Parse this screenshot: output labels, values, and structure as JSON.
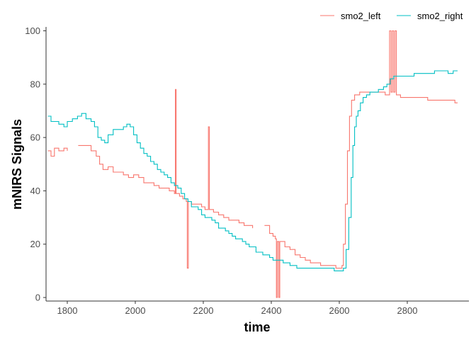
{
  "chart_data": {
    "type": "line",
    "xlabel": "time",
    "ylabel": "mNIRS Signals",
    "xlim": [
      1740,
      2950
    ],
    "ylim": [
      0,
      100
    ],
    "xticks": [
      1800,
      2000,
      2200,
      2400,
      2600,
      2800
    ],
    "yticks": [
      0,
      20,
      40,
      60,
      80,
      100
    ],
    "grid": false,
    "legend_position": "top-right",
    "series": [
      {
        "name": "smo2_left",
        "color": "#F8766D",
        "points": [
          [
            1743,
            55
          ],
          [
            1752,
            53
          ],
          [
            1762,
            56
          ],
          [
            1775,
            55
          ],
          [
            1790,
            56
          ],
          [
            1800,
            55
          ],
          [
            null,
            null
          ],
          [
            1832,
            57
          ],
          [
            1850,
            57
          ],
          [
            1870,
            55
          ],
          [
            1885,
            53
          ],
          [
            1895,
            50
          ],
          [
            1905,
            48
          ],
          [
            1920,
            49
          ],
          [
            1935,
            47
          ],
          [
            1950,
            47
          ],
          [
            1965,
            46
          ],
          [
            1980,
            45
          ],
          [
            1995,
            46
          ],
          [
            2010,
            45
          ],
          [
            2025,
            43
          ],
          [
            2040,
            43
          ],
          [
            2055,
            42
          ],
          [
            2070,
            41
          ],
          [
            2085,
            41
          ],
          [
            2100,
            40
          ],
          [
            2115,
            39
          ],
          [
            2118,
            78
          ],
          [
            2120,
            39
          ],
          [
            2130,
            38
          ],
          [
            2140,
            37
          ],
          [
            2150,
            36
          ],
          [
            2153,
            11
          ],
          [
            2156,
            36
          ],
          [
            2165,
            35
          ],
          [
            2180,
            35
          ],
          [
            2195,
            34
          ],
          [
            2205,
            33
          ],
          [
            2212,
            33
          ],
          [
            2215,
            64
          ],
          [
            2218,
            33
          ],
          [
            2230,
            32
          ],
          [
            2245,
            31
          ],
          [
            2260,
            30
          ],
          [
            2275,
            29
          ],
          [
            2290,
            29
          ],
          [
            2305,
            28
          ],
          [
            2320,
            27
          ],
          [
            2335,
            27
          ],
          [
            2345,
            26
          ],
          [
            null,
            null
          ],
          [
            2380,
            27
          ],
          [
            2395,
            24
          ],
          [
            2405,
            23
          ],
          [
            2412,
            22
          ],
          [
            2415,
            0
          ],
          [
            2418,
            21
          ],
          [
            2422,
            0
          ],
          [
            2425,
            21
          ],
          [
            2440,
            19
          ],
          [
            2455,
            18
          ],
          [
            2470,
            16
          ],
          [
            2485,
            15
          ],
          [
            2500,
            14
          ],
          [
            2515,
            13
          ],
          [
            2530,
            13
          ],
          [
            2545,
            12
          ],
          [
            2560,
            12
          ],
          [
            2575,
            12
          ],
          [
            2590,
            11
          ],
          [
            2600,
            11
          ],
          [
            2608,
            12
          ],
          [
            2612,
            20
          ],
          [
            2618,
            35
          ],
          [
            2624,
            55
          ],
          [
            2630,
            68
          ],
          [
            2636,
            74
          ],
          [
            2645,
            76
          ],
          [
            2660,
            77
          ],
          [
            2680,
            77
          ],
          [
            2700,
            77
          ],
          [
            2720,
            77
          ],
          [
            2735,
            76
          ],
          [
            2745,
            76
          ],
          [
            2748,
            100
          ],
          [
            2752,
            77
          ],
          [
            2756,
            100
          ],
          [
            2760,
            77
          ],
          [
            2764,
            100
          ],
          [
            2768,
            76
          ],
          [
            2780,
            75
          ],
          [
            2800,
            75
          ],
          [
            2820,
            75
          ],
          [
            2840,
            75
          ],
          [
            2860,
            74
          ],
          [
            2880,
            74
          ],
          [
            2900,
            74
          ],
          [
            2920,
            74
          ],
          [
            2940,
            73
          ],
          [
            2948,
            73
          ]
        ]
      },
      {
        "name": "smo2_right",
        "color": "#00BFC4",
        "points": [
          [
            1743,
            68
          ],
          [
            1752,
            66
          ],
          [
            1762,
            66
          ],
          [
            1775,
            65
          ],
          [
            1790,
            64
          ],
          [
            1800,
            66
          ],
          [
            1815,
            67
          ],
          [
            1830,
            68
          ],
          [
            1842,
            69
          ],
          [
            1855,
            67
          ],
          [
            1870,
            66
          ],
          [
            1880,
            64
          ],
          [
            1890,
            60
          ],
          [
            1900,
            59
          ],
          [
            1910,
            58
          ],
          [
            1920,
            61
          ],
          [
            1935,
            63
          ],
          [
            1950,
            63
          ],
          [
            1965,
            64
          ],
          [
            1975,
            65
          ],
          [
            1985,
            64
          ],
          [
            1995,
            61
          ],
          [
            2005,
            58
          ],
          [
            2015,
            56
          ],
          [
            2025,
            54
          ],
          [
            2035,
            53
          ],
          [
            2045,
            51
          ],
          [
            2055,
            50
          ],
          [
            2065,
            48
          ],
          [
            2075,
            47
          ],
          [
            2085,
            46
          ],
          [
            2095,
            45
          ],
          [
            2105,
            43
          ],
          [
            2115,
            42
          ],
          [
            2125,
            41
          ],
          [
            2135,
            39
          ],
          [
            2145,
            37
          ],
          [
            2155,
            36
          ],
          [
            2165,
            34
          ],
          [
            2175,
            34
          ],
          [
            2185,
            33
          ],
          [
            2195,
            31
          ],
          [
            2205,
            30
          ],
          [
            2215,
            30
          ],
          [
            2225,
            29
          ],
          [
            2235,
            28
          ],
          [
            2245,
            26
          ],
          [
            2255,
            26
          ],
          [
            2265,
            25
          ],
          [
            2275,
            24
          ],
          [
            2285,
            23
          ],
          [
            2295,
            22
          ],
          [
            2305,
            22
          ],
          [
            2315,
            21
          ],
          [
            2325,
            20
          ],
          [
            2335,
            19
          ],
          [
            2345,
            19
          ],
          [
            2355,
            17
          ],
          [
            2365,
            17
          ],
          [
            2375,
            16
          ],
          [
            2385,
            16
          ],
          [
            2395,
            15
          ],
          [
            2405,
            14
          ],
          [
            2415,
            14
          ],
          [
            2425,
            14
          ],
          [
            2435,
            13
          ],
          [
            2445,
            13
          ],
          [
            2455,
            12
          ],
          [
            2465,
            12
          ],
          [
            2475,
            11
          ],
          [
            2485,
            11
          ],
          [
            2495,
            11
          ],
          [
            2505,
            11
          ],
          [
            2515,
            11
          ],
          [
            2525,
            11
          ],
          [
            2535,
            11
          ],
          [
            2545,
            11
          ],
          [
            2555,
            11
          ],
          [
            2565,
            11
          ],
          [
            2575,
            11
          ],
          [
            2585,
            10
          ],
          [
            2595,
            10
          ],
          [
            2605,
            10
          ],
          [
            2612,
            11
          ],
          [
            2620,
            18
          ],
          [
            2628,
            30
          ],
          [
            2635,
            45
          ],
          [
            2640,
            57
          ],
          [
            2645,
            64
          ],
          [
            2650,
            68
          ],
          [
            2655,
            70
          ],
          [
            2662,
            73
          ],
          [
            2670,
            75
          ],
          [
            2680,
            76
          ],
          [
            2690,
            77
          ],
          [
            2700,
            77
          ],
          [
            2715,
            78
          ],
          [
            2730,
            79
          ],
          [
            2740,
            80
          ],
          [
            2750,
            82
          ],
          [
            2760,
            83
          ],
          [
            2775,
            83
          ],
          [
            2790,
            83
          ],
          [
            2805,
            83
          ],
          [
            2820,
            84
          ],
          [
            2840,
            84
          ],
          [
            2860,
            84
          ],
          [
            2880,
            85
          ],
          [
            2900,
            85
          ],
          [
            2920,
            84
          ],
          [
            2935,
            85
          ],
          [
            2948,
            85
          ]
        ]
      }
    ]
  }
}
